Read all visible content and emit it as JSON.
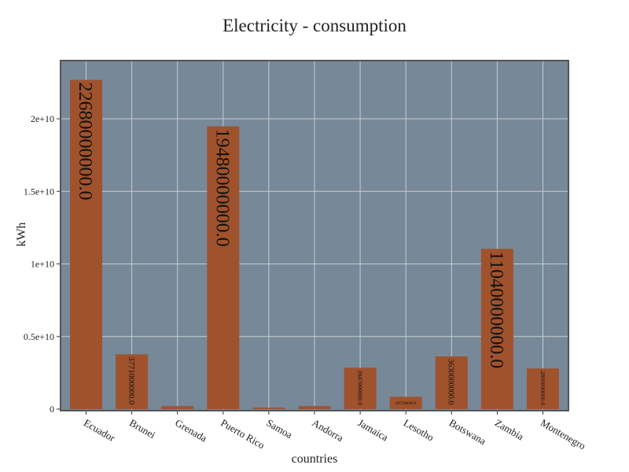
{
  "chart_data": {
    "type": "bar",
    "title": "Electricity - consumption",
    "xlabel": "countries",
    "ylabel": "kWh",
    "categories": [
      "Ecuador",
      "Brunei",
      "Grenada",
      "Puerto Rico",
      "Samoa",
      "Andorra",
      "Jamaica",
      "Lesotho",
      "Botswana",
      "Zambia",
      "Montenegro"
    ],
    "values": [
      22680000000.0,
      3771000000.0,
      200000000.0,
      19480000000.0,
      100000000.0,
      200000000.0,
      2847000000.0,
      847300000.0,
      3630000000.0,
      11040000000.0,
      2800000000.0
    ],
    "value_labels": [
      "22680000000.0",
      "3771000000.0",
      "",
      "19480000000.0",
      "",
      "",
      "2847000000.0",
      "847300000.0",
      "3630000000.0",
      "11040000000.0",
      "2800000000.0"
    ],
    "ylim": [
      0,
      24000000000
    ],
    "yticks": [
      0,
      5000000000,
      10000000000,
      15000000000,
      20000000000
    ],
    "ytick_labels": [
      "0",
      "0.5e+10",
      "1e+10",
      "1.5e+10",
      "2e+10"
    ],
    "grid": true,
    "colors": {
      "bar": "#a0522d",
      "plot_bg": "#778899",
      "grid": "#c8cdd2",
      "frame": "#555555"
    }
  }
}
